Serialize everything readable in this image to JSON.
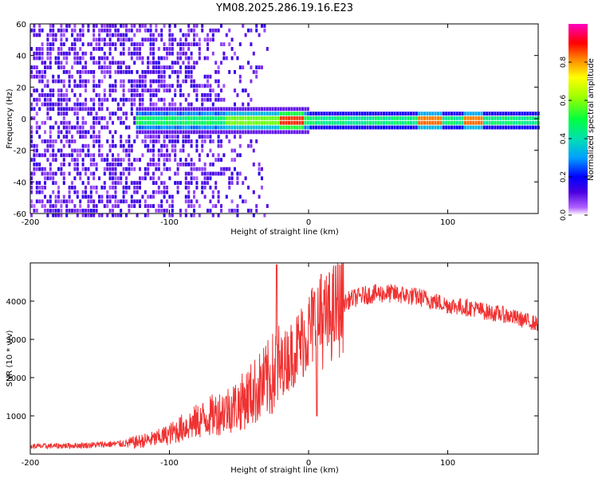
{
  "title": "YM08.2025.286.19.16.E23",
  "colors": {
    "snr_line": "#f03232",
    "frame": "#000000"
  },
  "chart_data": [
    {
      "type": "heatmap",
      "name": "spectrogram",
      "xlabel": "Height of straight line (km)",
      "ylabel": "Frequency (Hz)",
      "xlim": [
        -200,
        165
      ],
      "ylim": [
        -60,
        60
      ],
      "x_ticks": [
        "-200",
        "-100",
        "0",
        "100"
      ],
      "y_ticks": [
        "60",
        "40",
        "20",
        "0",
        "-20",
        "-40",
        "-60"
      ],
      "colorbar": {
        "label": "Normalized spectral amplitude",
        "range": [
          0,
          1
        ],
        "ticks": [
          "0.0",
          "0.2",
          "0.4",
          "0.6",
          "0.8"
        ]
      },
      "features": {
        "noise_region_x": [
          -200,
          -30
        ],
        "band_start_x": -125,
        "band_center_freq": 0,
        "band_halfwidth_hz": [
          3,
          6
        ],
        "peak_amplitude_regions_x": [
          [
            -22,
            -5
          ],
          [
            78,
            95
          ],
          [
            110,
            125
          ]
        ]
      }
    },
    {
      "type": "line",
      "name": "snr",
      "xlabel": "Height of straight line (km)",
      "ylabel": "SNR (10 * v/v)",
      "xlim": [
        -200,
        165
      ],
      "ylim": [
        0,
        5000
      ],
      "x_ticks": [
        "-200",
        "-100",
        "0",
        "100"
      ],
      "y_ticks": [
        "1000",
        "2000",
        "3000",
        "4000"
      ],
      "series": [
        {
          "name": "SNR",
          "x": [
            -200,
            -160,
            -130,
            -110,
            -100,
            -90,
            -80,
            -70,
            -60,
            -50,
            -40,
            -30,
            -25,
            -20,
            -10,
            0,
            5,
            10,
            20,
            30,
            40,
            50,
            60,
            70,
            80,
            90,
            100,
            110,
            120,
            130,
            140,
            150,
            165
          ],
          "values": [
            200,
            230,
            280,
            400,
            520,
            700,
            850,
            1000,
            1150,
            1300,
            1600,
            1900,
            2100,
            2300,
            2700,
            3200,
            3500,
            3400,
            3800,
            4050,
            4150,
            4200,
            4200,
            4150,
            4100,
            4000,
            3900,
            3850,
            3800,
            3700,
            3650,
            3550,
            3400
          ],
          "spikes": [
            {
              "x": -23,
              "value": 4950
            },
            {
              "x": 9,
              "value": 4700
            },
            {
              "x": 6,
              "value": 1000
            }
          ]
        }
      ]
    }
  ]
}
